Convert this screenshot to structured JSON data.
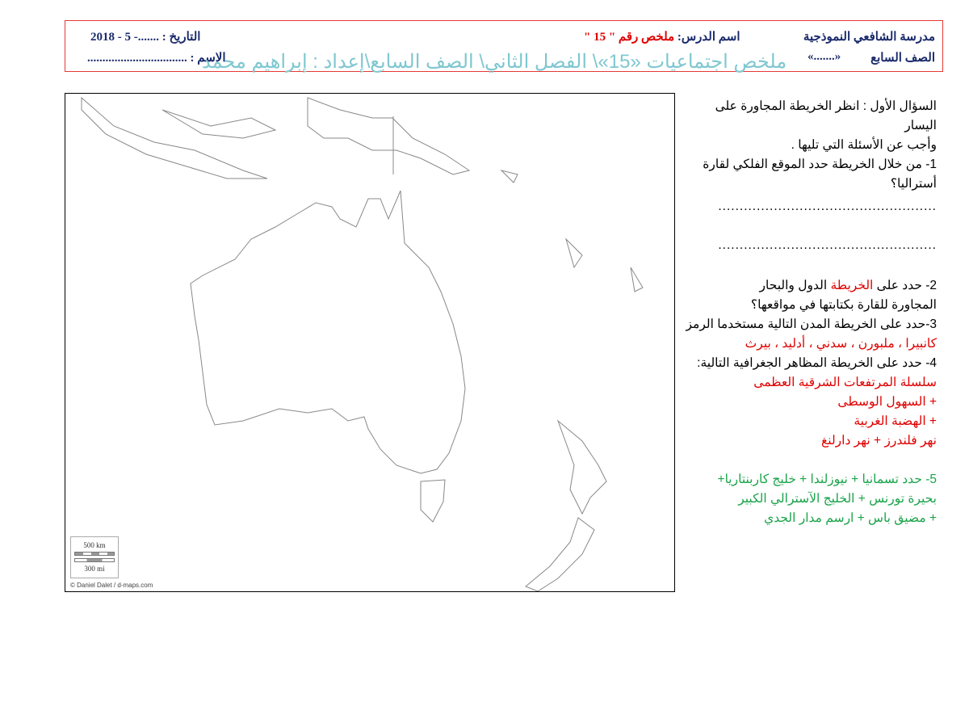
{
  "header": {
    "school": "مدرسة الشافعي النموذجية",
    "lesson_label": "اسم الدرس:",
    "lesson_value": "ملخص رقم \" 15 \"",
    "date_label": "التاريخ : .......- 5 - 2018",
    "grade_label": "الصف السابع",
    "grade_value": "«.......»",
    "name_label": "الاسم : .................................",
    "watermark": "ملخص اجتماعيات «15»\\ الفصل الثاني\\ الصف السابع\\إعداد : إبراهيم محمد"
  },
  "map": {
    "scale_km": "500 km",
    "scale_mi": "300 mi",
    "credit": "© Daniel Dalet / d-maps.com"
  },
  "questions": {
    "intro1": "السؤال الأول : انظر الخريطة المجاورة على",
    "intro2": "اليسار",
    "intro3": "وأجب عن الأسئلة التي تليها .",
    "q1a": "1- من خلال الخريطة حدد الموقع الفلكي لقارة",
    "q1b": "أستراليا؟",
    "dots1": "...................................................",
    "dots2": "...................................................",
    "q2a_pre": "2- حدد على ",
    "q2a_red": "الخريطة",
    "q2a_post": " الدول والبحار",
    "q2b": "المجاورة  للقارة بكتابتها في مواقعها؟",
    "q3": "3-حدد على الخريطة المدن التالية مستخدما الرمز",
    "q3_cities": "كانبيرا ، ملبورن ، سدني ، أدليد ، بيرث",
    "q4": "4- حدد على الخريطة المظاهر الجغرافية التالية:",
    "q4_items": [
      "سلسلة المرتفعات الشرقية العظمى",
      "+ السهول الوسطى",
      "+ الهضبة الغربية",
      "نهر فلندرز + نهر دارلنغ"
    ],
    "q5_lines": [
      "5- حدد تسمانيا  + نيوزلندا + خليج كاربنتاريا+",
      "بحيرة تورنس + الخليج الآسترالي الكبير",
      "+ مضيق باس + ارسم مدار الجدي"
    ]
  },
  "colors": {
    "red": "#e00000",
    "green": "#1aa34a",
    "navy": "#1a2a6b",
    "watermark": "#7fc7d0",
    "frame": "#e53935"
  }
}
